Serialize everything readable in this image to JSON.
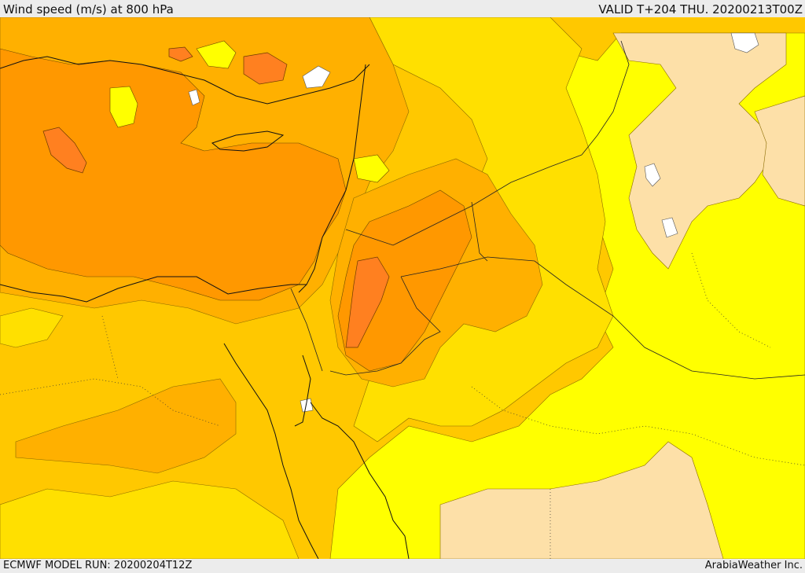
{
  "header": {
    "title": "Wind speed (m/s) at 800 hPa",
    "valid": "VALID T+204 THU. 20200213T00Z"
  },
  "footer": {
    "model_run": "ECMWF MODEL RUN: 20200204T12Z",
    "credit": "ArabiaWeather Inc."
  },
  "colors": {
    "light_tan": "#fde0a8",
    "yellow_bright": "#ffff00",
    "yellow": "#ffe000",
    "gold": "#ffc800",
    "orange_light": "#ffb000",
    "orange": "#ff9800",
    "orange_dark": "#ff8020",
    "white": "#ffffff"
  }
}
